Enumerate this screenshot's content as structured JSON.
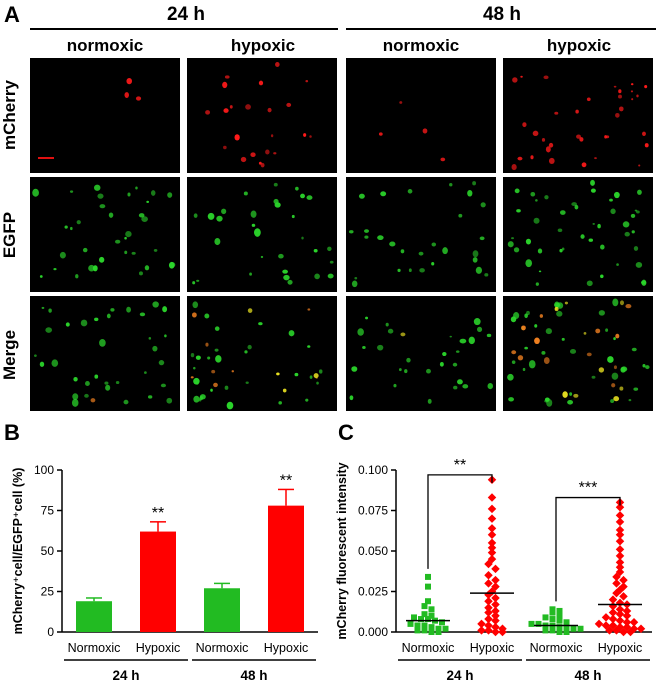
{
  "panelA": {
    "letter": "A",
    "times": [
      "24 h",
      "48 h"
    ],
    "conditions": [
      "normoxic",
      "hypoxic",
      "normoxic",
      "hypoxic"
    ],
    "rows": [
      "mCherry",
      "EGFP",
      "Merge"
    ],
    "colors": {
      "red": "#ff1a1a",
      "green": "#2bd62b",
      "yellow": "#e8e020",
      "orange": "#f08020"
    }
  },
  "panelB": {
    "letter": "B",
    "chart_data": {
      "type": "bar",
      "categories": [
        "Normoxic",
        "Hypoxic",
        "Normoxic",
        "Hypoxic"
      ],
      "groups": [
        "24 h",
        "48 h"
      ],
      "values": [
        19,
        62,
        27,
        78
      ],
      "errors": [
        2,
        6,
        3,
        10
      ],
      "bar_colors": [
        "#22bb22",
        "#ff0000",
        "#22bb22",
        "#ff0000"
      ],
      "significance": [
        "",
        "**",
        "",
        "**"
      ],
      "ylabel": "mCherry⁺cell/EGFP⁺cell (%)",
      "ylim": [
        0,
        100
      ],
      "yticks": [
        "0",
        "25",
        "50",
        "75",
        "100"
      ]
    }
  },
  "panelC": {
    "letter": "C",
    "chart_data": {
      "type": "scatter",
      "categories": [
        "Normoxic",
        "Hypoxic",
        "Normoxic",
        "Hypoxic"
      ],
      "groups": [
        "24 h",
        "48 h"
      ],
      "ylabel": "mCherry fluorescent intensity",
      "ylim": [
        0,
        0.1
      ],
      "yticks": [
        "0.000",
        "0.025",
        "0.050",
        "0.075",
        "0.100"
      ],
      "means": [
        0.007,
        0.024,
        0.004,
        0.017
      ],
      "series": [
        {
          "name": "24 h Normoxic",
          "marker": "square",
          "color": "#22bb22",
          "values": [
            0.034,
            0.028,
            0.019,
            0.016,
            0.014,
            0.011,
            0.01,
            0.009,
            0.008,
            0.008,
            0.007,
            0.006,
            0.005,
            0.004,
            0.004,
            0.003,
            0.002,
            0.002,
            0.001,
            0.001,
            0.0,
            0.0
          ]
        },
        {
          "name": "24 h Hypoxic",
          "marker": "diamond",
          "color": "#ff0000",
          "values": [
            0.094,
            0.083,
            0.076,
            0.07,
            0.064,
            0.06,
            0.055,
            0.052,
            0.049,
            0.045,
            0.042,
            0.039,
            0.035,
            0.032,
            0.03,
            0.028,
            0.025,
            0.023,
            0.021,
            0.019,
            0.017,
            0.015,
            0.013,
            0.012,
            0.01,
            0.008,
            0.007,
            0.005,
            0.004,
            0.003,
            0.002,
            0.001,
            0.001,
            0.0,
            0.0
          ]
        },
        {
          "name": "48 h Normoxic",
          "marker": "square",
          "color": "#22bb22",
          "values": [
            0.014,
            0.013,
            0.012,
            0.01,
            0.009,
            0.008,
            0.007,
            0.006,
            0.005,
            0.005,
            0.004,
            0.004,
            0.003,
            0.003,
            0.002,
            0.002,
            0.001,
            0.001,
            0.0,
            0.0
          ]
        },
        {
          "name": "48 h Hypoxic",
          "marker": "diamond",
          "color": "#ff0000",
          "values": [
            0.08,
            0.077,
            0.072,
            0.068,
            0.063,
            0.06,
            0.056,
            0.051,
            0.047,
            0.043,
            0.04,
            0.037,
            0.034,
            0.032,
            0.03,
            0.028,
            0.026,
            0.024,
            0.022,
            0.02,
            0.018,
            0.017,
            0.016,
            0.014,
            0.013,
            0.012,
            0.011,
            0.01,
            0.009,
            0.008,
            0.007,
            0.006,
            0.006,
            0.005,
            0.004,
            0.004,
            0.003,
            0.003,
            0.002,
            0.002,
            0.001,
            0.001,
            0.0,
            0.0
          ]
        }
      ],
      "brackets": [
        {
          "from": 0,
          "to": 1,
          "label": "**"
        },
        {
          "from": 2,
          "to": 3,
          "label": "***"
        }
      ]
    }
  }
}
